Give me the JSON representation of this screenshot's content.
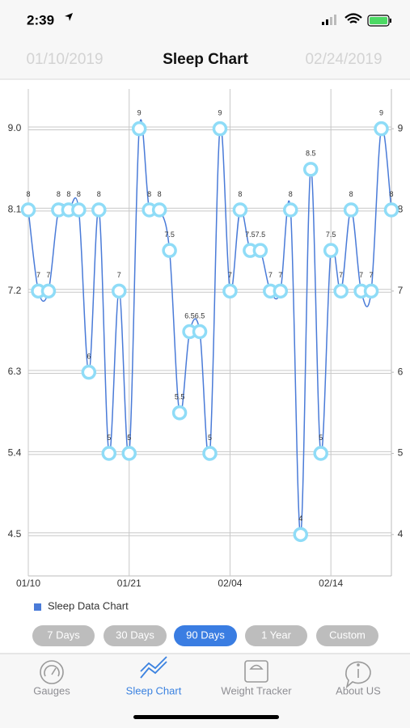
{
  "status_bar": {
    "time": "2:39"
  },
  "header": {
    "start_date": "01/10/2019",
    "title": "Sleep Chart",
    "end_date": "02/24/2019"
  },
  "chart_data": {
    "type": "line",
    "categories": [
      "01/10",
      null,
      null,
      null,
      null,
      null,
      null,
      null,
      null,
      null,
      "01/21",
      null,
      null,
      null,
      null,
      null,
      null,
      null,
      null,
      null,
      "02/04",
      null,
      null,
      null,
      null,
      null,
      null,
      null,
      null,
      null,
      "02/14",
      null,
      null,
      null,
      null,
      null,
      null
    ],
    "series": [
      {
        "name": "Sleep Data Chart",
        "color": "#4a7bd8",
        "axis": "y2",
        "values": [
          8,
          7,
          7,
          8,
          8,
          8,
          6,
          8,
          5,
          7,
          5,
          9,
          8,
          8,
          7.5,
          5.5,
          6.5,
          6.5,
          5,
          9,
          7,
          8,
          7.5,
          7.5,
          7,
          7,
          8,
          4,
          8.5,
          5,
          7.5,
          7,
          8,
          7,
          7,
          9,
          8
        ]
      }
    ],
    "ylim": [
      4.04,
      9.44
    ],
    "yticks": [
      4.5,
      5.4,
      6.3,
      7.2,
      8.1,
      {
        "value": 9.0,
        "label": "9.0"
      }
    ],
    "y2lim": [
      3.49,
      9.49
    ],
    "y2ticks": [
      4,
      5,
      6,
      7,
      8,
      9
    ],
    "grid": true,
    "legend": "bottom-left"
  },
  "range_buttons": [
    {
      "label": "7 Days",
      "active": false
    },
    {
      "label": "30 Days",
      "active": false
    },
    {
      "label": "90 Days",
      "active": true
    },
    {
      "label": "1 Year",
      "active": false
    },
    {
      "label": "Custom",
      "active": false
    }
  ],
  "tabs": [
    {
      "label": "Gauges",
      "active": false
    },
    {
      "label": "Sleep Chart",
      "active": true
    },
    {
      "label": "Weight Tracker",
      "active": false
    },
    {
      "label": "About US",
      "active": false
    }
  ]
}
